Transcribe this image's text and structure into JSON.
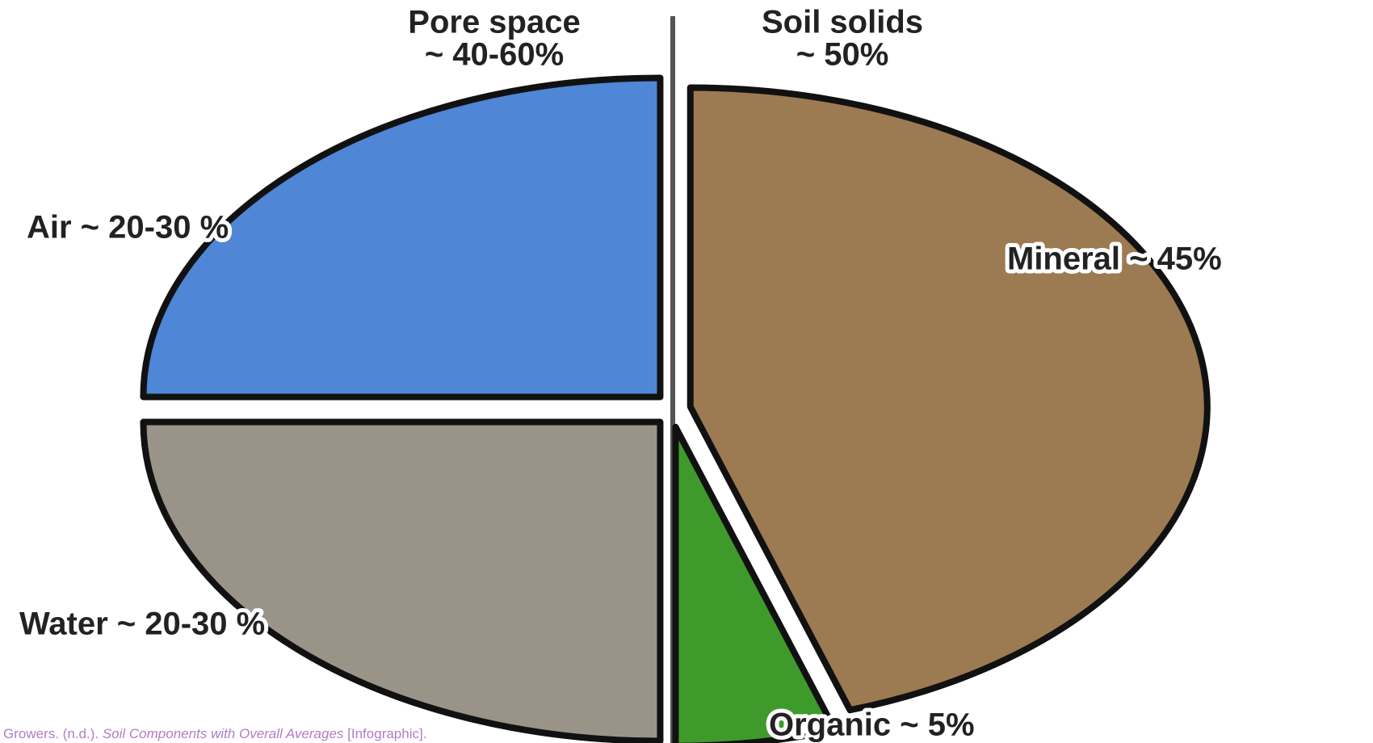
{
  "chart_data": {
    "type": "pie",
    "annotations": [
      {
        "lines": [
          "Pore space",
          "~ 40-60%"
        ]
      },
      {
        "lines": [
          "Soil solids",
          "~ 50%"
        ]
      }
    ],
    "categories": [
      "Mineral ~ 45%",
      "Organic ~ 5%",
      "Water ~ 20-30 %",
      "Air ~ 20-30 %"
    ],
    "values": [
      45,
      5,
      25,
      25
    ],
    "colors": [
      "#9c7a52",
      "#3f9a2c",
      "#9a9488",
      "#4f86d6"
    ],
    "caption": {
      "author": "Growers. (n.d.).",
      "title": "Soil Components with Overall Averages",
      "kind": "[Infographic]."
    }
  }
}
